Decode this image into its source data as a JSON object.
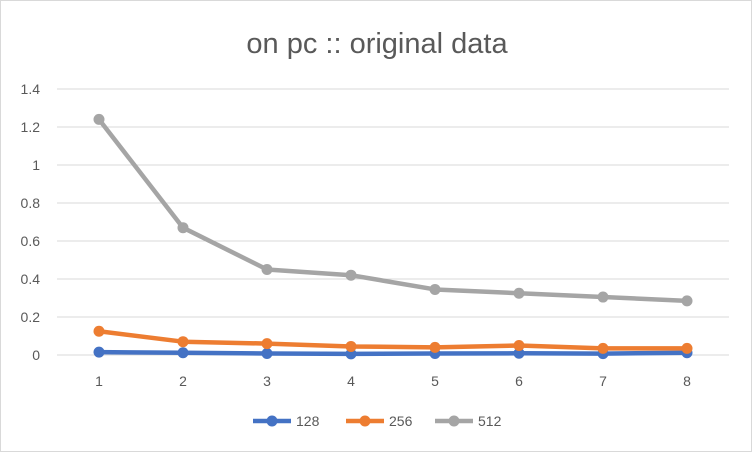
{
  "chart_data": {
    "type": "line",
    "title": "on pc :: original data",
    "x": [
      1,
      2,
      3,
      4,
      5,
      6,
      7,
      8
    ],
    "ylim": [
      0,
      1.4
    ],
    "yticks": [
      0,
      0.2,
      0.4,
      0.6,
      0.8,
      1,
      1.2,
      1.4
    ],
    "ytick_labels": [
      "0",
      "0.2",
      "0.4",
      "0.6",
      "0.8",
      "1",
      "1.2",
      "1.4"
    ],
    "grid": true,
    "legend_position": "bottom",
    "series": [
      {
        "name": "128",
        "color": "#4472c4",
        "values": [
          0.015,
          0.012,
          0.008,
          0.006,
          0.008,
          0.009,
          0.007,
          0.012
        ]
      },
      {
        "name": "256",
        "color": "#ed7d31",
        "values": [
          0.125,
          0.07,
          0.06,
          0.045,
          0.04,
          0.05,
          0.035,
          0.035
        ]
      },
      {
        "name": "512",
        "color": "#a5a5a5",
        "values": [
          1.24,
          0.67,
          0.45,
          0.42,
          0.345,
          0.325,
          0.305,
          0.285
        ]
      }
    ]
  }
}
